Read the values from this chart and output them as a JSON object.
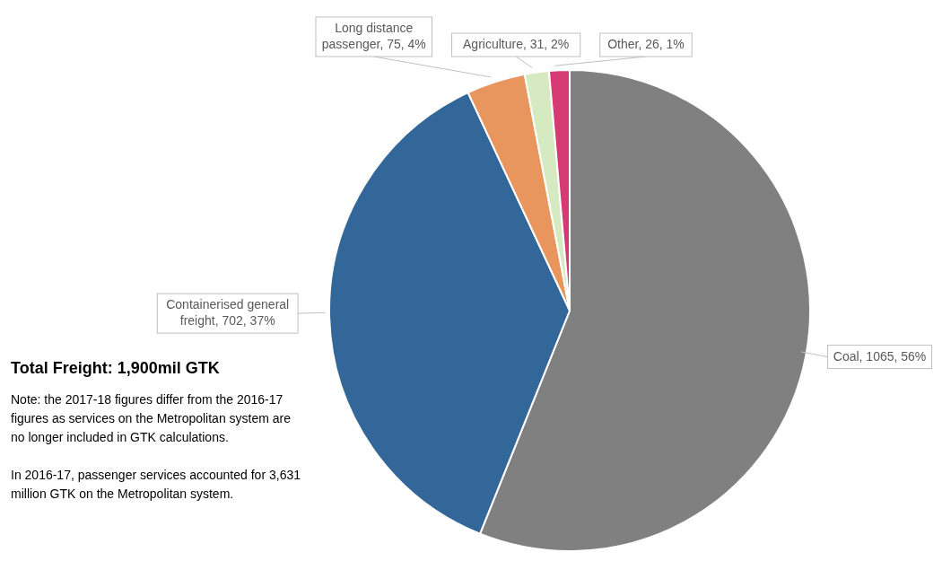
{
  "chart_data": {
    "type": "pie",
    "title": "Total Freight: 1,900mil GTK",
    "categories": [
      "Coal",
      "Containerised general freight",
      "Long distance passenger",
      "Agriculture",
      "Other"
    ],
    "values": [
      1065,
      702,
      75,
      31,
      26
    ],
    "colors": [
      "#808080",
      "#336699",
      "#e9965e",
      "#d5eac0",
      "#d63a73"
    ],
    "value_labels": [
      "1065, 56%",
      "702, 37%",
      "75, 4%",
      "31, 2%",
      "26, 1%"
    ],
    "annotations": [
      "Note: the 2017-18 figures differ from the 2016-17 figures as services on the Metropolitan system are no longer included in GTK calculations.",
      "In 2016-17, passenger services accounted for 3,631 million GTK on the Metropolitan system."
    ]
  }
}
